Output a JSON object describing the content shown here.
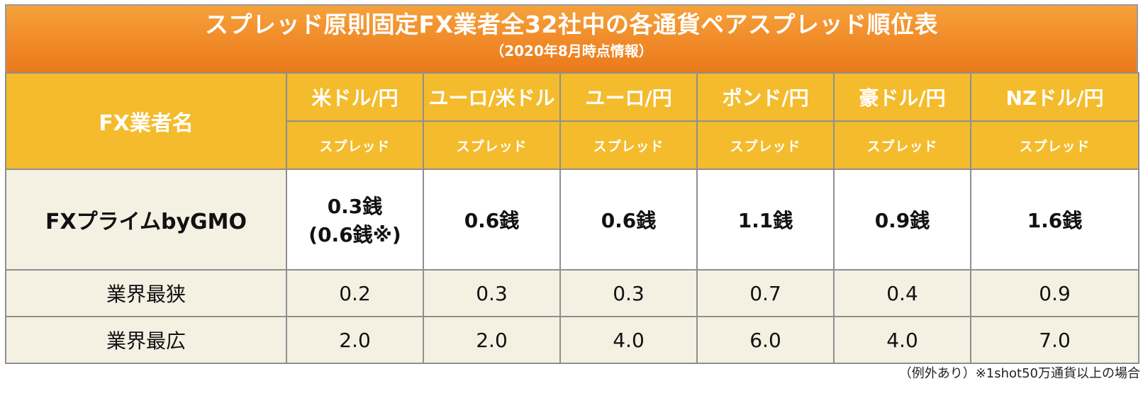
{
  "title": "スプレッド原則固定FX業者全32社中の各通貨ペアスプレッド順位表",
  "subtitle": "（2020年8月時点情報）",
  "header": {
    "name_label": "FX業者名",
    "pairs": [
      "米ドル/円",
      "ユーロ/米ドル",
      "ユーロ/円",
      "ポンド/円",
      "豪ドル/円",
      "NZドル/円"
    ],
    "sub_label": "スプレッド"
  },
  "rows": [
    {
      "name": "FXプライムbyGMO",
      "values": [
        {
          "main": "0.3銭",
          "extra": "(0.6銭※)"
        },
        {
          "main": "0.6銭"
        },
        {
          "main": "0.6銭"
        },
        {
          "main": "1.1銭"
        },
        {
          "main": "0.9銭"
        },
        {
          "main": "1.6銭"
        }
      ]
    },
    {
      "name": "業界最狭",
      "values": [
        "0.2",
        "0.3",
        "0.3",
        "0.7",
        "0.4",
        "0.9"
      ]
    },
    {
      "name": "業界最広",
      "values": [
        "2.0",
        "2.0",
        "4.0",
        "6.0",
        "4.0",
        "7.0"
      ]
    }
  ],
  "footnote": "（例外あり）※1shot50万通貨以上の場合"
}
